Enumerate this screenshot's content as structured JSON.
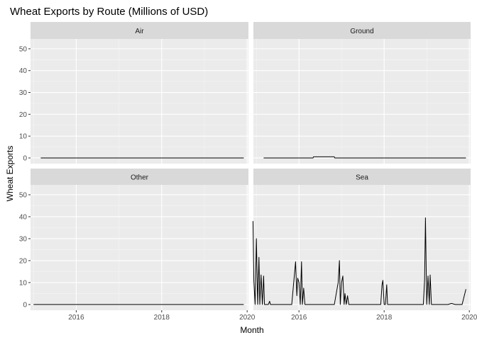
{
  "chart_data": {
    "type": "line",
    "title": "Wheat Exports by Route (Millions of USD)",
    "xlabel": "Month",
    "ylabel": "Wheat Exports",
    "ylim": [
      -2.6,
      54.5
    ],
    "xlim": [
      2014.93,
      2020.03
    ],
    "x_ticks": [
      2016,
      2018,
      2020
    ],
    "x_tick_labels": [
      "2016",
      "2018",
      "2020"
    ],
    "y_ticks": [
      0,
      10,
      20,
      30,
      40,
      50
    ],
    "y_tick_labels": [
      "0",
      "10",
      "20",
      "30",
      "40",
      "50"
    ],
    "grid": true,
    "legend": "none",
    "facets": [
      {
        "name": "Air",
        "x": [
          2015.17,
          2019.92
        ],
        "y": [
          0,
          0
        ]
      },
      {
        "name": "Ground",
        "x": [
          2015.17,
          2016.33,
          2016.34,
          2016.83,
          2016.84,
          2019.92
        ],
        "y": [
          0,
          0,
          0.5,
          0.5,
          0,
          0
        ]
      },
      {
        "name": "Other",
        "x": [
          2015.0,
          2019.92
        ],
        "y": [
          0,
          0
        ]
      },
      {
        "name": "Sea",
        "x": [
          2014.92,
          2014.94,
          2014.97,
          2015.0,
          2015.03,
          2015.06,
          2015.08,
          2015.11,
          2015.14,
          2015.17,
          2015.19,
          2015.22,
          2015.25,
          2015.28,
          2015.31,
          2015.33,
          2015.36,
          2015.39,
          2015.42,
          2015.5,
          2015.58,
          2015.67,
          2015.75,
          2015.83,
          2015.92,
          2015.95,
          2015.97,
          2016.0,
          2016.03,
          2016.06,
          2016.08,
          2016.11,
          2016.14,
          2016.17,
          2016.2,
          2016.22,
          2016.25,
          2016.28,
          2016.31,
          2016.33,
          2016.5,
          2016.67,
          2016.75,
          2016.83,
          2016.92,
          2016.95,
          2016.97,
          2017.0,
          2017.03,
          2017.06,
          2017.08,
          2017.11,
          2017.14,
          2017.17,
          2017.2,
          2017.22,
          2017.25,
          2017.28,
          2017.31,
          2017.33,
          2017.42,
          2017.5,
          2017.58,
          2017.67,
          2017.75,
          2017.83,
          2017.92,
          2017.95,
          2017.97,
          2018.0,
          2018.03,
          2018.06,
          2018.08,
          2018.11,
          2018.14,
          2018.17,
          2018.2,
          2018.22,
          2018.25,
          2018.33,
          2018.42,
          2018.5,
          2018.58,
          2018.67,
          2018.75,
          2018.83,
          2018.92,
          2018.95,
          2018.97,
          2019.0,
          2019.03,
          2019.06,
          2019.08,
          2019.11,
          2019.14,
          2019.17,
          2019.25,
          2019.33,
          2019.42,
          2019.5,
          2019.58,
          2019.67,
          2019.75,
          2019.83,
          2019.92
        ],
        "y": [
          38,
          11,
          0,
          30,
          0,
          21.5,
          0,
          13.5,
          0,
          13,
          0,
          0,
          0,
          0,
          1.5,
          0,
          0,
          0,
          0,
          0,
          0,
          0,
          0,
          0,
          19.5,
          4,
          12,
          10,
          0,
          19.5,
          0,
          7.5,
          0,
          0,
          0,
          0,
          0,
          0,
          0,
          0,
          0,
          0,
          0,
          0,
          10,
          20,
          0,
          10,
          13,
          0,
          5,
          0,
          4,
          0,
          0,
          0,
          0,
          0,
          0,
          0,
          0,
          0,
          0,
          0,
          0,
          0,
          0,
          9,
          11,
          0,
          0,
          9,
          0,
          0,
          0,
          0,
          0,
          0,
          0,
          0,
          0,
          0,
          0,
          0,
          0,
          0,
          0,
          11.5,
          39.5,
          0,
          13,
          0,
          13.5,
          0,
          0,
          0,
          0,
          0,
          0,
          0,
          0.5,
          0,
          0,
          0,
          7
        ]
      }
    ]
  }
}
